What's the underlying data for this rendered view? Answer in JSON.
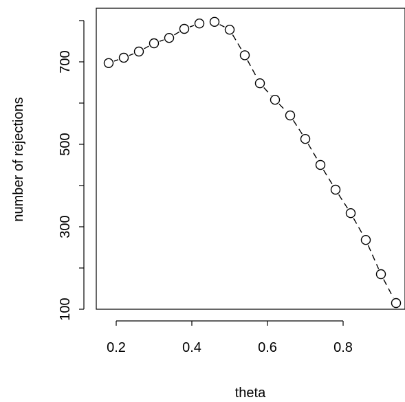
{
  "chart_data": {
    "type": "scatter",
    "xlabel": "theta",
    "ylabel": "number of rejections",
    "xlim": [
      0.18,
      0.96
    ],
    "ylim": [
      100,
      800
    ],
    "xticks": [
      0.2,
      0.4,
      0.6,
      0.8
    ],
    "yticks": [
      100,
      300,
      500,
      700
    ],
    "xtick_labels": [
      "0.2",
      "0.4",
      "0.6",
      "0.8"
    ],
    "ytick_labels": [
      "100",
      "300",
      "500",
      "700"
    ],
    "grid": false,
    "legend": "none",
    "series": [
      {
        "x": [
          0.18,
          0.22,
          0.26,
          0.3,
          0.34,
          0.38,
          0.42,
          0.46,
          0.5,
          0.54,
          0.58,
          0.62,
          0.66,
          0.7,
          0.74,
          0.78,
          0.82,
          0.86,
          0.9,
          0.94
        ],
        "y": [
          697,
          710,
          725,
          745,
          758,
          780,
          793,
          797,
          778,
          716,
          648,
          608,
          570,
          513,
          450,
          390,
          333,
          268,
          185,
          115
        ],
        "marker": "open-circle",
        "line": "dashed"
      }
    ]
  }
}
